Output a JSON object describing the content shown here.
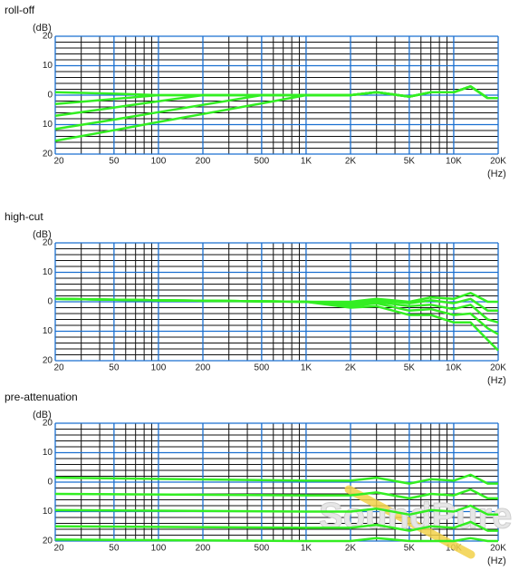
{
  "chart_data": [
    {
      "type": "line",
      "title": "roll-off",
      "y_label": "(dB)",
      "x_label": "(Hz)",
      "log_x": true,
      "xlim": [
        20,
        20000
      ],
      "ylim": [
        -20,
        20
      ],
      "xticks": [
        20,
        50,
        100,
        200,
        500,
        {
          "value": 1000,
          "label": "1K"
        },
        {
          "value": 2000,
          "label": "2K"
        },
        {
          "value": 5000,
          "label": "5K"
        },
        {
          "value": 10000,
          "label": "10K"
        },
        {
          "value": 20000,
          "label": "20K"
        }
      ],
      "yticks": [
        {
          "value": -20,
          "label": "20"
        },
        {
          "value": -10,
          "label": "10"
        },
        0,
        10,
        20
      ],
      "xminor": [
        30,
        40,
        60,
        70,
        80,
        90,
        300,
        400,
        600,
        700,
        800,
        900,
        3000,
        4000,
        6000,
        7000,
        8000,
        9000
      ],
      "yminor": [
        18,
        16,
        14,
        12,
        8,
        6,
        4,
        2,
        -2,
        -4,
        -6,
        -8,
        -12,
        -14,
        -16,
        -18
      ],
      "grid": true,
      "grid_color": "#1a6fd0",
      "minor_grid_color": "#111111",
      "x": [
        20,
        50,
        100,
        200,
        500,
        1000,
        2000,
        3000,
        5000,
        7000,
        10000,
        13000,
        17000,
        20000
      ],
      "series": [
        {
          "color": "#33ee22",
          "values": [
            1,
            0.5,
            0,
            0,
            0,
            0,
            0,
            1,
            -0.5,
            1,
            1,
            3,
            -1,
            -1
          ]
        },
        {
          "color": "#33ee22",
          "values": [
            -3,
            -1.3,
            0,
            0,
            0,
            0,
            0,
            1,
            -0.5,
            1,
            1,
            3,
            -1,
            -1
          ]
        },
        {
          "color": "#33ee22",
          "values": [
            -7,
            -4.2,
            -2.1,
            0,
            0,
            0,
            0,
            1,
            -0.5,
            1,
            1,
            3,
            -1,
            -1
          ]
        },
        {
          "color": "#33ee22",
          "values": [
            -11.5,
            -8.3,
            -5.8,
            -3.3,
            0,
            0,
            0,
            1,
            -0.5,
            1,
            1,
            3,
            -1,
            -1
          ]
        },
        {
          "color": "#33ee22",
          "values": [
            -15.5,
            -11.9,
            -9.1,
            -6.4,
            -2.8,
            0,
            0,
            1,
            -0.5,
            1,
            1,
            3,
            -1,
            -1
          ]
        }
      ]
    },
    {
      "type": "line",
      "title": "high-cut",
      "y_label": "(dB)",
      "x_label": "(Hz)",
      "log_x": true,
      "xlim": [
        20,
        20000
      ],
      "ylim": [
        -20,
        20
      ],
      "xticks": [
        20,
        50,
        100,
        200,
        500,
        {
          "value": 1000,
          "label": "1K"
        },
        {
          "value": 2000,
          "label": "2K"
        },
        {
          "value": 5000,
          "label": "5K"
        },
        {
          "value": 10000,
          "label": "10K"
        },
        {
          "value": 20000,
          "label": "20K"
        }
      ],
      "yticks": [
        {
          "value": -20,
          "label": "20"
        },
        {
          "value": -10,
          "label": "10"
        },
        0,
        10,
        20
      ],
      "xminor": [
        30,
        40,
        60,
        70,
        80,
        90,
        300,
        400,
        600,
        700,
        800,
        900,
        3000,
        4000,
        6000,
        7000,
        8000,
        9000
      ],
      "yminor": [
        18,
        16,
        14,
        12,
        8,
        6,
        4,
        2,
        -2,
        -4,
        -6,
        -8,
        -12,
        -14,
        -16,
        -18
      ],
      "grid": true,
      "grid_color": "#1a6fd0",
      "minor_grid_color": "#111111",
      "x": [
        20,
        100,
        1000,
        2000,
        3000,
        5000,
        7000,
        10000,
        13000,
        17000,
        20000
      ],
      "series": [
        {
          "color": "#33ee22",
          "values": [
            1,
            0.5,
            0,
            0,
            1,
            0,
            1.5,
            1,
            3,
            0,
            0
          ]
        },
        {
          "color": "#33ee22",
          "values": [
            1,
            0.5,
            0,
            -0.5,
            0.5,
            -0.5,
            0.5,
            -0.5,
            1,
            -3,
            -3
          ]
        },
        {
          "color": "#33ee22",
          "values": [
            1,
            0.5,
            0,
            -1,
            0,
            -1.5,
            -1,
            -2.5,
            -1,
            -6,
            -7
          ]
        },
        {
          "color": "#33ee22",
          "values": [
            1,
            0.5,
            0,
            -1.5,
            -0.5,
            -3,
            -2.5,
            -4.5,
            -4,
            -9,
            -11
          ]
        },
        {
          "color": "#33ee22",
          "values": [
            1,
            0.5,
            0,
            -2,
            -1.5,
            -4.5,
            -4.5,
            -7,
            -7,
            -13,
            -16.5
          ]
        }
      ]
    },
    {
      "type": "line",
      "title": "pre-attenuation",
      "y_label": "(dB)",
      "x_label": "(Hz)",
      "log_x": true,
      "xlim": [
        20,
        20000
      ],
      "ylim": [
        -20,
        20
      ],
      "xticks": [
        20,
        50,
        100,
        200,
        500,
        {
          "value": 1000,
          "label": "1K"
        },
        {
          "value": 2000,
          "label": "2K"
        },
        {
          "value": 5000,
          "label": "5K"
        },
        {
          "value": 10000,
          "label": "10K"
        },
        {
          "value": 20000,
          "label": "20K"
        }
      ],
      "yticks": [
        {
          "value": -20,
          "label": "20"
        },
        {
          "value": -10,
          "label": "10"
        },
        0,
        10,
        20
      ],
      "xminor": [
        30,
        40,
        60,
        70,
        80,
        90,
        300,
        400,
        600,
        700,
        800,
        900,
        3000,
        4000,
        6000,
        7000,
        8000,
        9000
      ],
      "yminor": [
        18,
        16,
        14,
        12,
        8,
        6,
        4,
        2,
        -2,
        -4,
        -6,
        -8,
        -12,
        -14,
        -16,
        -18
      ],
      "grid": true,
      "grid_color": "#1a6fd0",
      "minor_grid_color": "#111111",
      "x": [
        20,
        1000,
        2000,
        3000,
        5000,
        7000,
        10000,
        13000,
        17000,
        20000
      ],
      "series": [
        {
          "color": "#33ee22",
          "values": [
            1.5,
            0.5,
            0.5,
            1.5,
            -0.5,
            1,
            0.5,
            2.5,
            -0.5,
            -0.5
          ]
        },
        {
          "color": "#33ee22",
          "values": [
            -4,
            -4.5,
            -4.5,
            -3.5,
            -5.5,
            -4,
            -4.5,
            -2.5,
            -5.5,
            -5.5
          ]
        },
        {
          "color": "#33ee22",
          "values": [
            -9.5,
            -10,
            -10,
            -9,
            -11,
            -9.5,
            -10,
            -8,
            -11,
            -11
          ]
        },
        {
          "color": "#33ee22",
          "values": [
            -15,
            -15.5,
            -15.5,
            -14.5,
            -16.5,
            -15,
            -15.5,
            -13.5,
            -16.5,
            -16.5
          ]
        },
        {
          "color": "#33ee22",
          "values": [
            -19.5,
            -20,
            -20,
            -19,
            -20,
            -20,
            -20,
            -19,
            -20,
            -20
          ]
        }
      ]
    }
  ],
  "watermark": "SoundPure"
}
